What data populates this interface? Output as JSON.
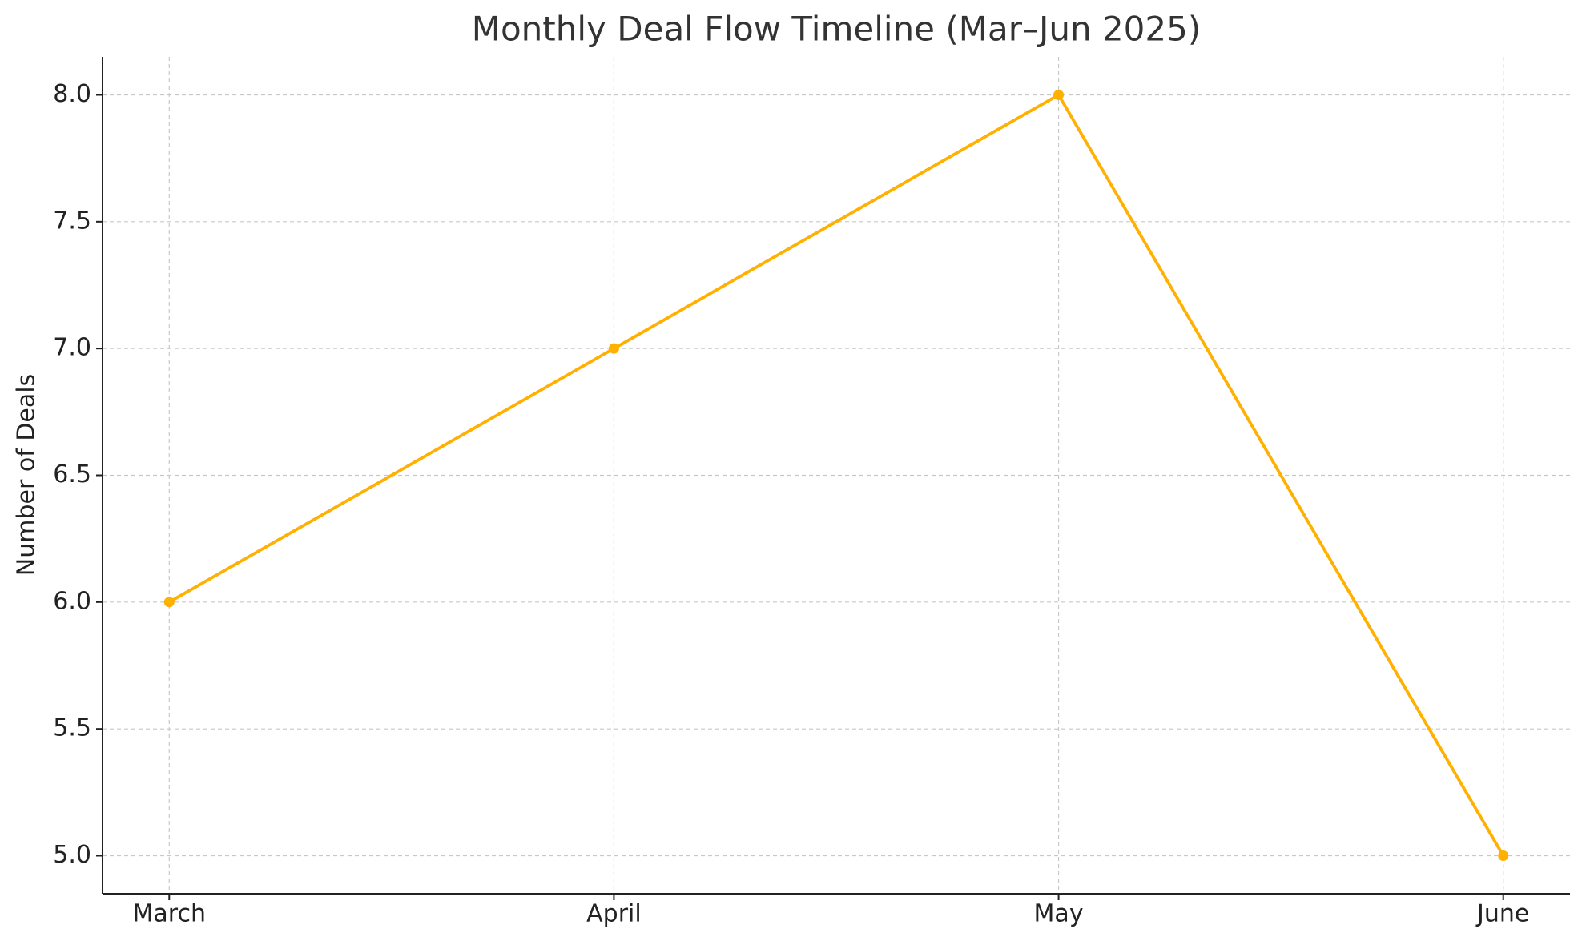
{
  "chart_data": {
    "type": "line",
    "title": "Monthly Deal Flow Timeline (Mar–Jun 2025)",
    "ylabel": "Number of Deals",
    "categories": [
      "March",
      "April",
      "May",
      "June"
    ],
    "values": [
      6,
      7,
      8,
      5
    ],
    "color": "#ffb000",
    "ylim": [
      4.85,
      8.15
    ],
    "yticks": [
      {
        "value": 5,
        "label": "5.0"
      },
      {
        "value": 5.5,
        "label": "5.5"
      },
      {
        "value": 6,
        "label": "6.0"
      },
      {
        "value": 6.5,
        "label": "6.5"
      },
      {
        "value": 7,
        "label": "7.0"
      },
      {
        "value": 7.5,
        "label": "7.5"
      },
      {
        "value": 8,
        "label": "8.0"
      }
    ],
    "grid": true
  }
}
